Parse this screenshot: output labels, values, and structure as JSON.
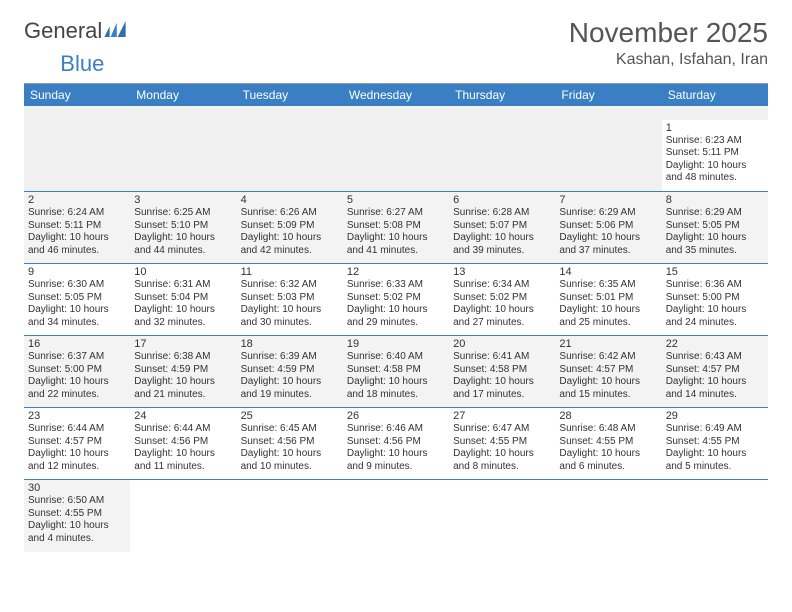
{
  "logo": {
    "text1": "General",
    "text2": "Blue"
  },
  "title": "November 2025",
  "location": "Kashan, Isfahan, Iran",
  "colors": {
    "header_bg": "#3a7fc4",
    "header_text": "#ffffff",
    "alt_row_bg": "#f3f3f3",
    "text": "#333333",
    "rule": "#3a7fc4"
  },
  "dow": [
    "Sunday",
    "Monday",
    "Tuesday",
    "Wednesday",
    "Thursday",
    "Friday",
    "Saturday"
  ],
  "weeks": [
    [
      null,
      null,
      null,
      null,
      null,
      null,
      {
        "n": "1",
        "sr": "Sunrise: 6:23 AM",
        "ss": "Sunset: 5:11 PM",
        "d1": "Daylight: 10 hours",
        "d2": "and 48 minutes."
      }
    ],
    [
      {
        "n": "2",
        "sr": "Sunrise: 6:24 AM",
        "ss": "Sunset: 5:11 PM",
        "d1": "Daylight: 10 hours",
        "d2": "and 46 minutes."
      },
      {
        "n": "3",
        "sr": "Sunrise: 6:25 AM",
        "ss": "Sunset: 5:10 PM",
        "d1": "Daylight: 10 hours",
        "d2": "and 44 minutes."
      },
      {
        "n": "4",
        "sr": "Sunrise: 6:26 AM",
        "ss": "Sunset: 5:09 PM",
        "d1": "Daylight: 10 hours",
        "d2": "and 42 minutes."
      },
      {
        "n": "5",
        "sr": "Sunrise: 6:27 AM",
        "ss": "Sunset: 5:08 PM",
        "d1": "Daylight: 10 hours",
        "d2": "and 41 minutes."
      },
      {
        "n": "6",
        "sr": "Sunrise: 6:28 AM",
        "ss": "Sunset: 5:07 PM",
        "d1": "Daylight: 10 hours",
        "d2": "and 39 minutes."
      },
      {
        "n": "7",
        "sr": "Sunrise: 6:29 AM",
        "ss": "Sunset: 5:06 PM",
        "d1": "Daylight: 10 hours",
        "d2": "and 37 minutes."
      },
      {
        "n": "8",
        "sr": "Sunrise: 6:29 AM",
        "ss": "Sunset: 5:05 PM",
        "d1": "Daylight: 10 hours",
        "d2": "and 35 minutes."
      }
    ],
    [
      {
        "n": "9",
        "sr": "Sunrise: 6:30 AM",
        "ss": "Sunset: 5:05 PM",
        "d1": "Daylight: 10 hours",
        "d2": "and 34 minutes."
      },
      {
        "n": "10",
        "sr": "Sunrise: 6:31 AM",
        "ss": "Sunset: 5:04 PM",
        "d1": "Daylight: 10 hours",
        "d2": "and 32 minutes."
      },
      {
        "n": "11",
        "sr": "Sunrise: 6:32 AM",
        "ss": "Sunset: 5:03 PM",
        "d1": "Daylight: 10 hours",
        "d2": "and 30 minutes."
      },
      {
        "n": "12",
        "sr": "Sunrise: 6:33 AM",
        "ss": "Sunset: 5:02 PM",
        "d1": "Daylight: 10 hours",
        "d2": "and 29 minutes."
      },
      {
        "n": "13",
        "sr": "Sunrise: 6:34 AM",
        "ss": "Sunset: 5:02 PM",
        "d1": "Daylight: 10 hours",
        "d2": "and 27 minutes."
      },
      {
        "n": "14",
        "sr": "Sunrise: 6:35 AM",
        "ss": "Sunset: 5:01 PM",
        "d1": "Daylight: 10 hours",
        "d2": "and 25 minutes."
      },
      {
        "n": "15",
        "sr": "Sunrise: 6:36 AM",
        "ss": "Sunset: 5:00 PM",
        "d1": "Daylight: 10 hours",
        "d2": "and 24 minutes."
      }
    ],
    [
      {
        "n": "16",
        "sr": "Sunrise: 6:37 AM",
        "ss": "Sunset: 5:00 PM",
        "d1": "Daylight: 10 hours",
        "d2": "and 22 minutes."
      },
      {
        "n": "17",
        "sr": "Sunrise: 6:38 AM",
        "ss": "Sunset: 4:59 PM",
        "d1": "Daylight: 10 hours",
        "d2": "and 21 minutes."
      },
      {
        "n": "18",
        "sr": "Sunrise: 6:39 AM",
        "ss": "Sunset: 4:59 PM",
        "d1": "Daylight: 10 hours",
        "d2": "and 19 minutes."
      },
      {
        "n": "19",
        "sr": "Sunrise: 6:40 AM",
        "ss": "Sunset: 4:58 PM",
        "d1": "Daylight: 10 hours",
        "d2": "and 18 minutes."
      },
      {
        "n": "20",
        "sr": "Sunrise: 6:41 AM",
        "ss": "Sunset: 4:58 PM",
        "d1": "Daylight: 10 hours",
        "d2": "and 17 minutes."
      },
      {
        "n": "21",
        "sr": "Sunrise: 6:42 AM",
        "ss": "Sunset: 4:57 PM",
        "d1": "Daylight: 10 hours",
        "d2": "and 15 minutes."
      },
      {
        "n": "22",
        "sr": "Sunrise: 6:43 AM",
        "ss": "Sunset: 4:57 PM",
        "d1": "Daylight: 10 hours",
        "d2": "and 14 minutes."
      }
    ],
    [
      {
        "n": "23",
        "sr": "Sunrise: 6:44 AM",
        "ss": "Sunset: 4:57 PM",
        "d1": "Daylight: 10 hours",
        "d2": "and 12 minutes."
      },
      {
        "n": "24",
        "sr": "Sunrise: 6:44 AM",
        "ss": "Sunset: 4:56 PM",
        "d1": "Daylight: 10 hours",
        "d2": "and 11 minutes."
      },
      {
        "n": "25",
        "sr": "Sunrise: 6:45 AM",
        "ss": "Sunset: 4:56 PM",
        "d1": "Daylight: 10 hours",
        "d2": "and 10 minutes."
      },
      {
        "n": "26",
        "sr": "Sunrise: 6:46 AM",
        "ss": "Sunset: 4:56 PM",
        "d1": "Daylight: 10 hours",
        "d2": "and 9 minutes."
      },
      {
        "n": "27",
        "sr": "Sunrise: 6:47 AM",
        "ss": "Sunset: 4:55 PM",
        "d1": "Daylight: 10 hours",
        "d2": "and 8 minutes."
      },
      {
        "n": "28",
        "sr": "Sunrise: 6:48 AM",
        "ss": "Sunset: 4:55 PM",
        "d1": "Daylight: 10 hours",
        "d2": "and 6 minutes."
      },
      {
        "n": "29",
        "sr": "Sunrise: 6:49 AM",
        "ss": "Sunset: 4:55 PM",
        "d1": "Daylight: 10 hours",
        "d2": "and 5 minutes."
      }
    ],
    [
      {
        "n": "30",
        "sr": "Sunrise: 6:50 AM",
        "ss": "Sunset: 4:55 PM",
        "d1": "Daylight: 10 hours",
        "d2": "and 4 minutes."
      },
      null,
      null,
      null,
      null,
      null,
      null
    ]
  ]
}
